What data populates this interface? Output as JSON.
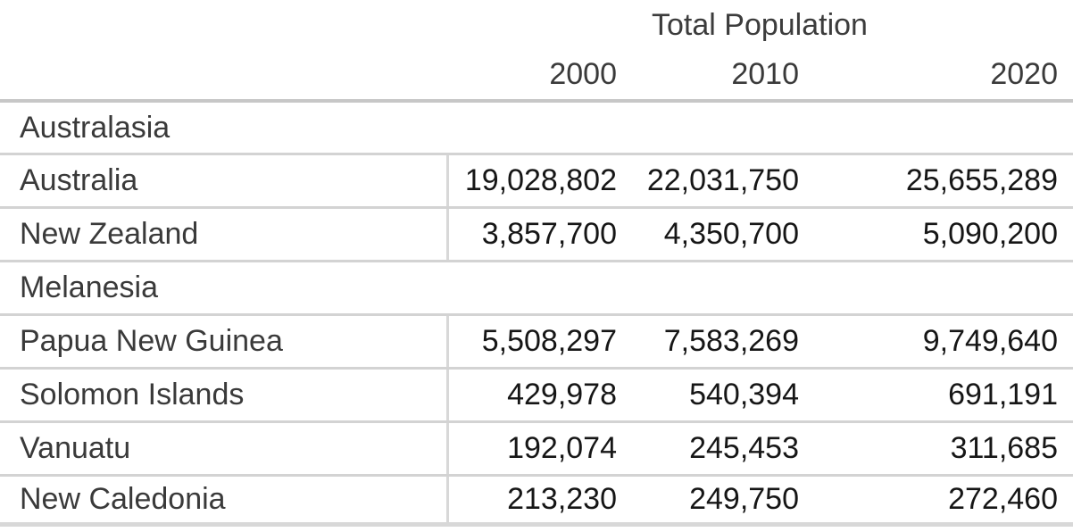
{
  "table": {
    "title": "Total Population",
    "years": [
      "2000",
      "2010",
      "2020"
    ],
    "rows": [
      {
        "type": "section",
        "label": "Australasia"
      },
      {
        "type": "data",
        "label": "Australia",
        "values": [
          "19,028,802",
          "22,031,750",
          "25,655,289"
        ]
      },
      {
        "type": "data",
        "label": "New Zealand",
        "values": [
          "3,857,700",
          "4,350,700",
          "5,090,200"
        ]
      },
      {
        "type": "section",
        "label": "Melanesia"
      },
      {
        "type": "data",
        "label": "Papua New Guinea",
        "values": [
          "5,508,297",
          "7,583,269",
          "9,749,640"
        ]
      },
      {
        "type": "data",
        "label": "Solomon Islands",
        "values": [
          "429,978",
          "540,394",
          "691,191"
        ]
      },
      {
        "type": "data",
        "label": "Vanuatu",
        "values": [
          "192,074",
          "245,453",
          "311,685"
        ]
      },
      {
        "type": "data",
        "label": "New Caledonia",
        "values": [
          "213,230",
          "249,750",
          "272,460"
        ]
      }
    ],
    "colors": {
      "label_text": "#3a3a3a",
      "number_text": "#161616",
      "header_rule": "#c7c7c7",
      "row_rule": "#d3d3d3",
      "column_rule": "#d8d8d8",
      "bottom_rule": "#d8d8d8",
      "background": "#ffffff"
    }
  },
  "chart_data": {
    "type": "table",
    "title": "Total Population",
    "columns": [
      "2000",
      "2010",
      "2020"
    ],
    "groups": [
      {
        "name": "Australasia",
        "rows": [
          {
            "name": "Australia",
            "values": [
              19028802,
              22031750,
              25655289
            ]
          },
          {
            "name": "New Zealand",
            "values": [
              3857700,
              4350700,
              5090200
            ]
          }
        ]
      },
      {
        "name": "Melanesia",
        "rows": [
          {
            "name": "Papua New Guinea",
            "values": [
              5508297,
              7583269,
              9749640
            ]
          },
          {
            "name": "Solomon Islands",
            "values": [
              429978,
              540394,
              691191
            ]
          },
          {
            "name": "Vanuatu",
            "values": [
              192074,
              245453,
              311685
            ]
          },
          {
            "name": "New Caledonia",
            "values": [
              213230,
              249750,
              272460
            ]
          }
        ]
      }
    ]
  }
}
